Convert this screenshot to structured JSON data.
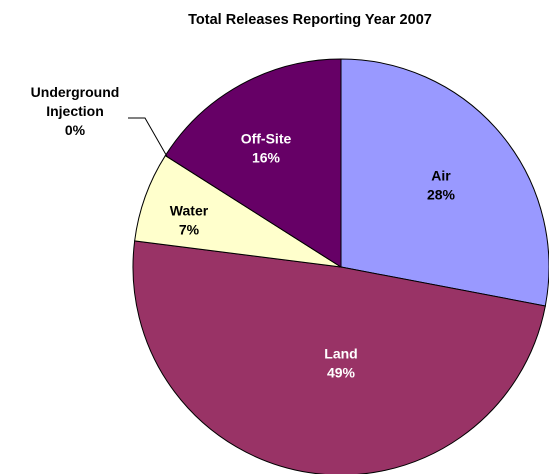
{
  "chart_data": {
    "type": "pie",
    "title": "Total Releases Reporting Year 2007",
    "slices": [
      {
        "name": "Air",
        "value": 28,
        "label": "28%",
        "color": "#9999FF",
        "text_color": "#000000"
      },
      {
        "name": "Land",
        "value": 49,
        "label": "49%",
        "color": "#993366",
        "text_color": "#FFFFFF"
      },
      {
        "name": "Water",
        "value": 7,
        "label": "7%",
        "color": "#FFFFCC",
        "text_color": "#000000"
      },
      {
        "name": "Underground Injection",
        "value": 0,
        "label": "0%",
        "color": "#CCFFFF",
        "text_color": "#000000"
      },
      {
        "name": "Off-Site",
        "value": 16,
        "label": "16%",
        "color": "#660066",
        "text_color": "#FFFFFF"
      }
    ],
    "start_angle": "12 o'clock",
    "direction": "clockwise",
    "legend": "none",
    "labels": "inside slices, underground injection outside with leader line"
  }
}
